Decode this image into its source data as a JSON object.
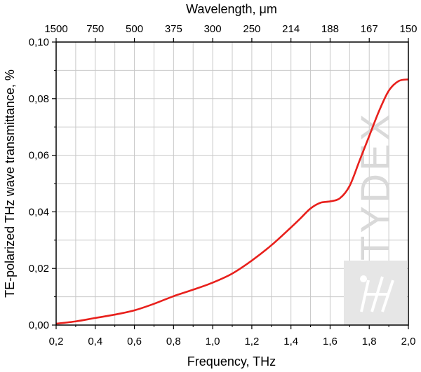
{
  "chart_data": {
    "type": "line",
    "title": "",
    "xlabel": "Frequency, THz",
    "ylabel": "TE-polarized THz wave transmittance, %",
    "top_xlabel": "Wavelength, μm",
    "xlim": [
      0.2,
      2.0
    ],
    "ylim": [
      0.0,
      0.1
    ],
    "grid": true,
    "x_ticks": [
      0.2,
      0.4,
      0.6,
      0.8,
      1.0,
      1.2,
      1.4,
      1.6,
      1.8,
      2.0
    ],
    "x_tick_labels": [
      "0,2",
      "0,4",
      "0,6",
      "0,8",
      "1,0",
      "1,2",
      "1,4",
      "1,6",
      "1,8",
      "2,0"
    ],
    "y_ticks": [
      0.0,
      0.02,
      0.04,
      0.06,
      0.08,
      0.1
    ],
    "y_tick_labels": [
      "0,00",
      "0,02",
      "0,04",
      "0,06",
      "0,08",
      "0,10"
    ],
    "top_ticks_freq": [
      0.2,
      0.4,
      0.6,
      0.8,
      1.0,
      1.2,
      1.4,
      1.6,
      1.8,
      2.0
    ],
    "top_tick_labels": [
      "1500",
      "750",
      "500",
      "375",
      "300",
      "250",
      "214",
      "188",
      "167",
      "150"
    ],
    "series": [
      {
        "color": "#e8201c",
        "x": [
          0.2,
          0.3,
          0.4,
          0.5,
          0.6,
          0.7,
          0.8,
          0.9,
          1.0,
          1.1,
          1.2,
          1.3,
          1.4,
          1.45,
          1.5,
          1.55,
          1.6,
          1.65,
          1.7,
          1.75,
          1.8,
          1.85,
          1.9,
          1.95,
          2.0
        ],
        "y": [
          0.0005,
          0.0013,
          0.0025,
          0.0037,
          0.0052,
          0.0075,
          0.0102,
          0.0125,
          0.015,
          0.0182,
          0.0228,
          0.0282,
          0.0345,
          0.0378,
          0.0412,
          0.0432,
          0.0437,
          0.0448,
          0.0492,
          0.058,
          0.0668,
          0.0756,
          0.0828,
          0.0862,
          0.0868
        ]
      }
    ],
    "watermark": "TYDEX"
  }
}
